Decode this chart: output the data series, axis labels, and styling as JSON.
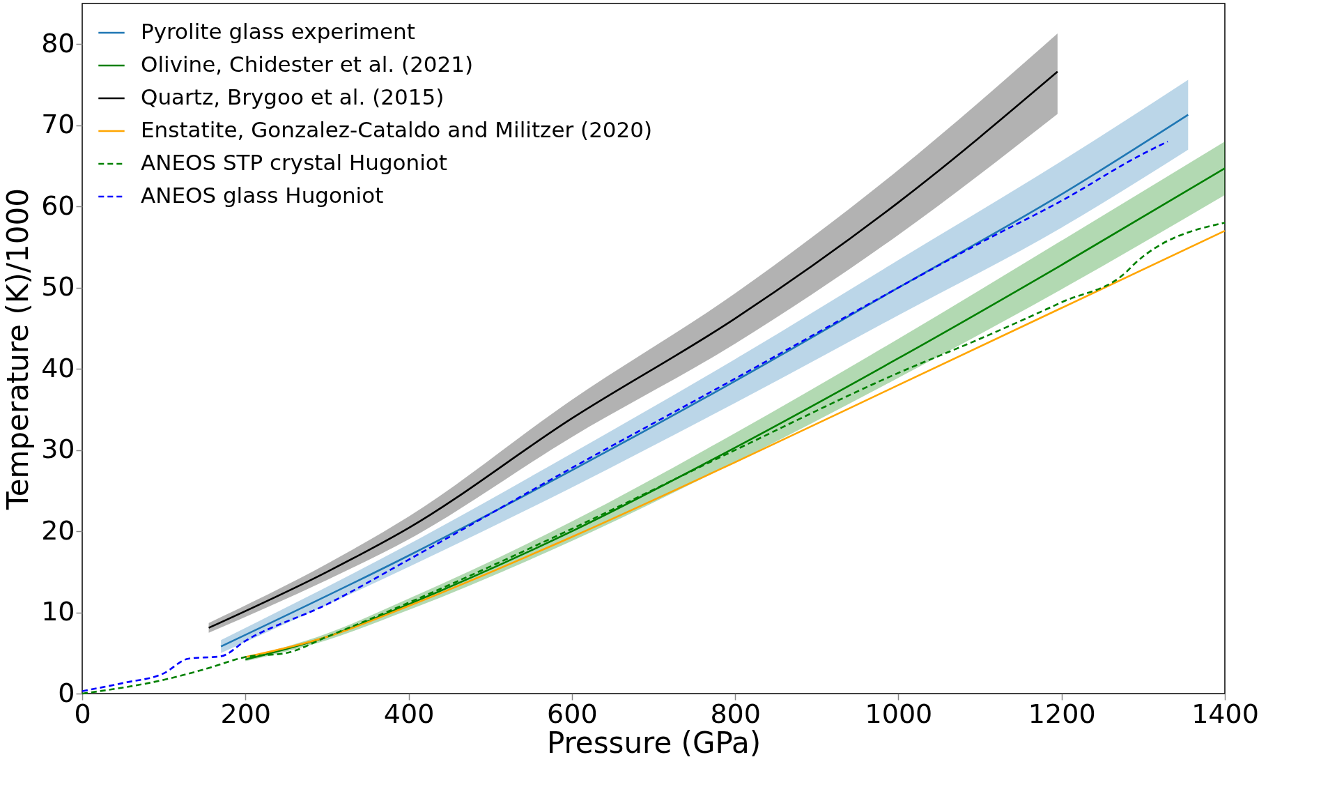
{
  "chart_data": {
    "type": "line",
    "xlabel": "Pressure (GPa)",
    "ylabel": "Temperature (K)/1000",
    "xlim": [
      0,
      1400
    ],
    "ylim": [
      0,
      85
    ],
    "xticks": [
      0,
      200,
      400,
      600,
      800,
      1000,
      1200,
      1400
    ],
    "yticks": [
      0,
      10,
      20,
      30,
      40,
      50,
      60,
      70,
      80
    ],
    "grid": false,
    "legend": "top left",
    "series": [
      {
        "name": "Pyrolite glass experiment",
        "color": "#1f77b4",
        "line_style": "solid",
        "x": [
          170,
          400,
          600,
          800,
          1000,
          1200,
          1355
        ],
        "values": [
          5.8,
          17,
          27.5,
          38.5,
          50,
          61.5,
          71.3
        ],
        "lower": [
          5.0,
          15.6,
          25.4,
          35.8,
          46.6,
          57.4,
          67.0
        ],
        "upper": [
          6.6,
          18.4,
          29.6,
          41.2,
          53.4,
          65.6,
          75.6
        ]
      },
      {
        "name": "Olivine, Chidester et al. (2021)",
        "color": "#008000",
        "line_style": "solid",
        "x": [
          200,
          300,
          400,
          600,
          800,
          1000,
          1200,
          1400
        ],
        "values": [
          4.2,
          7,
          11,
          20,
          30.3,
          41.3,
          52.8,
          64.7
        ],
        "lower": [
          4.0,
          6.6,
          10.3,
          18.8,
          28.5,
          38.9,
          49.8,
          61.4
        ],
        "upper": [
          4.4,
          7.4,
          11.7,
          21.2,
          32.1,
          43.7,
          55.8,
          68.0
        ]
      },
      {
        "name": "Quartz, Brygoo et al. (2015)",
        "color": "#000000",
        "line_style": "solid",
        "x": [
          155,
          300,
          400,
          600,
          800,
          1000,
          1195
        ],
        "values": [
          8.1,
          15,
          20.4,
          33.9,
          46.2,
          60.5,
          76.6
        ],
        "lower": [
          7.5,
          14,
          19,
          31.6,
          43.1,
          56.5,
          71.4
        ],
        "upper": [
          8.7,
          16,
          21.8,
          36.2,
          49.3,
          64.5,
          81.3
        ]
      },
      {
        "name": "Enstatite, Gonzalez-Cataldo and Militzer (2020)",
        "color": "#ffa500",
        "line_style": "solid",
        "x": [
          200,
          300,
          400,
          600,
          800,
          1000,
          1200,
          1400
        ],
        "values": [
          4.5,
          7,
          10.8,
          19.3,
          28.5,
          38,
          47.5,
          57
        ]
      },
      {
        "name": "ANEOS STP crystal Hugoniot",
        "color": "#008000",
        "line_style": "dashed",
        "x": [
          0,
          100,
          150,
          200,
          250,
          300,
          400,
          600,
          800,
          1000,
          1100,
          1200,
          1280,
          1290,
          1400
        ],
        "values": [
          0,
          1.7,
          3,
          4.5,
          5,
          7,
          11.2,
          20.3,
          30,
          39.5,
          43.7,
          48.2,
          52,
          53,
          58
        ]
      },
      {
        "name": "ANEOS glass Hugoniot",
        "color": "#0000ff",
        "line_style": "dashed",
        "x": [
          0,
          50,
          100,
          130,
          170,
          200,
          300,
          400,
          600,
          800,
          1000,
          1100,
          1200,
          1300,
          1330
        ],
        "values": [
          0.3,
          1.3,
          2.5,
          4.3,
          4.6,
          6.5,
          11,
          16.5,
          27.8,
          38.8,
          50,
          55.5,
          60.7,
          66.5,
          68
        ]
      }
    ]
  }
}
